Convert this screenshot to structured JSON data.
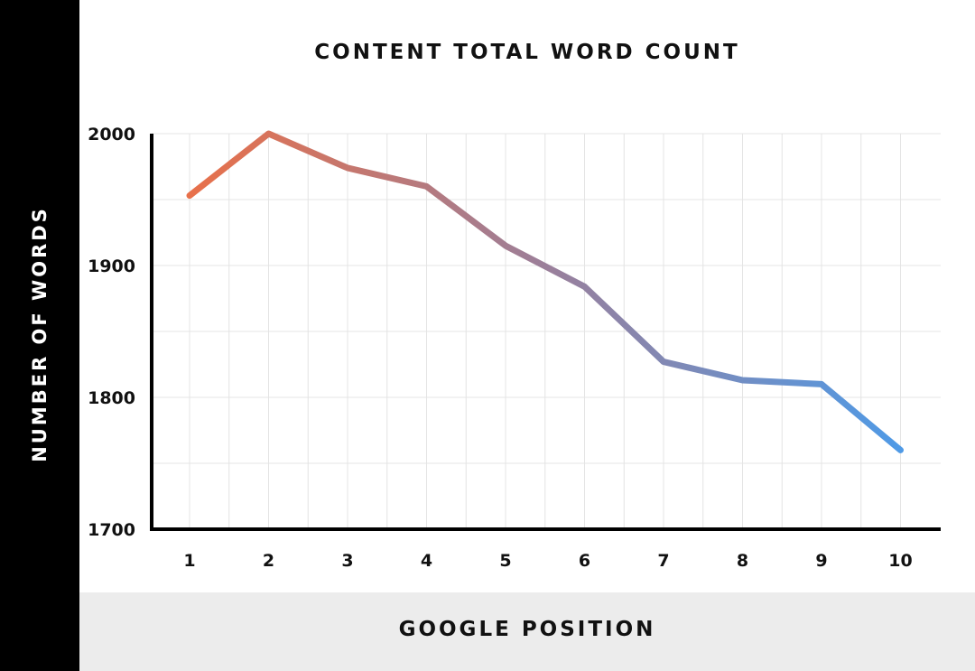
{
  "chart_data": {
    "type": "line",
    "title": "CONTENT TOTAL WORD COUNT",
    "xlabel": "GOOGLE POSITION",
    "ylabel": "NUMBER OF WORDS",
    "x": [
      1,
      2,
      3,
      4,
      5,
      6,
      7,
      8,
      9,
      10
    ],
    "x_tick_labels": [
      "1",
      "2",
      "3",
      "4",
      "5",
      "6",
      "7",
      "8",
      "9",
      "10"
    ],
    "y_tick_labels": [
      "2000",
      "1900",
      "1800",
      "1700"
    ],
    "y_ticks": [
      2000,
      1900,
      1800,
      1700
    ],
    "values": [
      1953,
      2000,
      1974,
      1960,
      1915,
      1884,
      1827,
      1813,
      1810,
      1760
    ],
    "ylim": [
      1700,
      2000
    ],
    "grid": true,
    "colors": {
      "start": "#e8704a",
      "middle": "#9b7f9a",
      "end": "#4f9ae6"
    }
  }
}
